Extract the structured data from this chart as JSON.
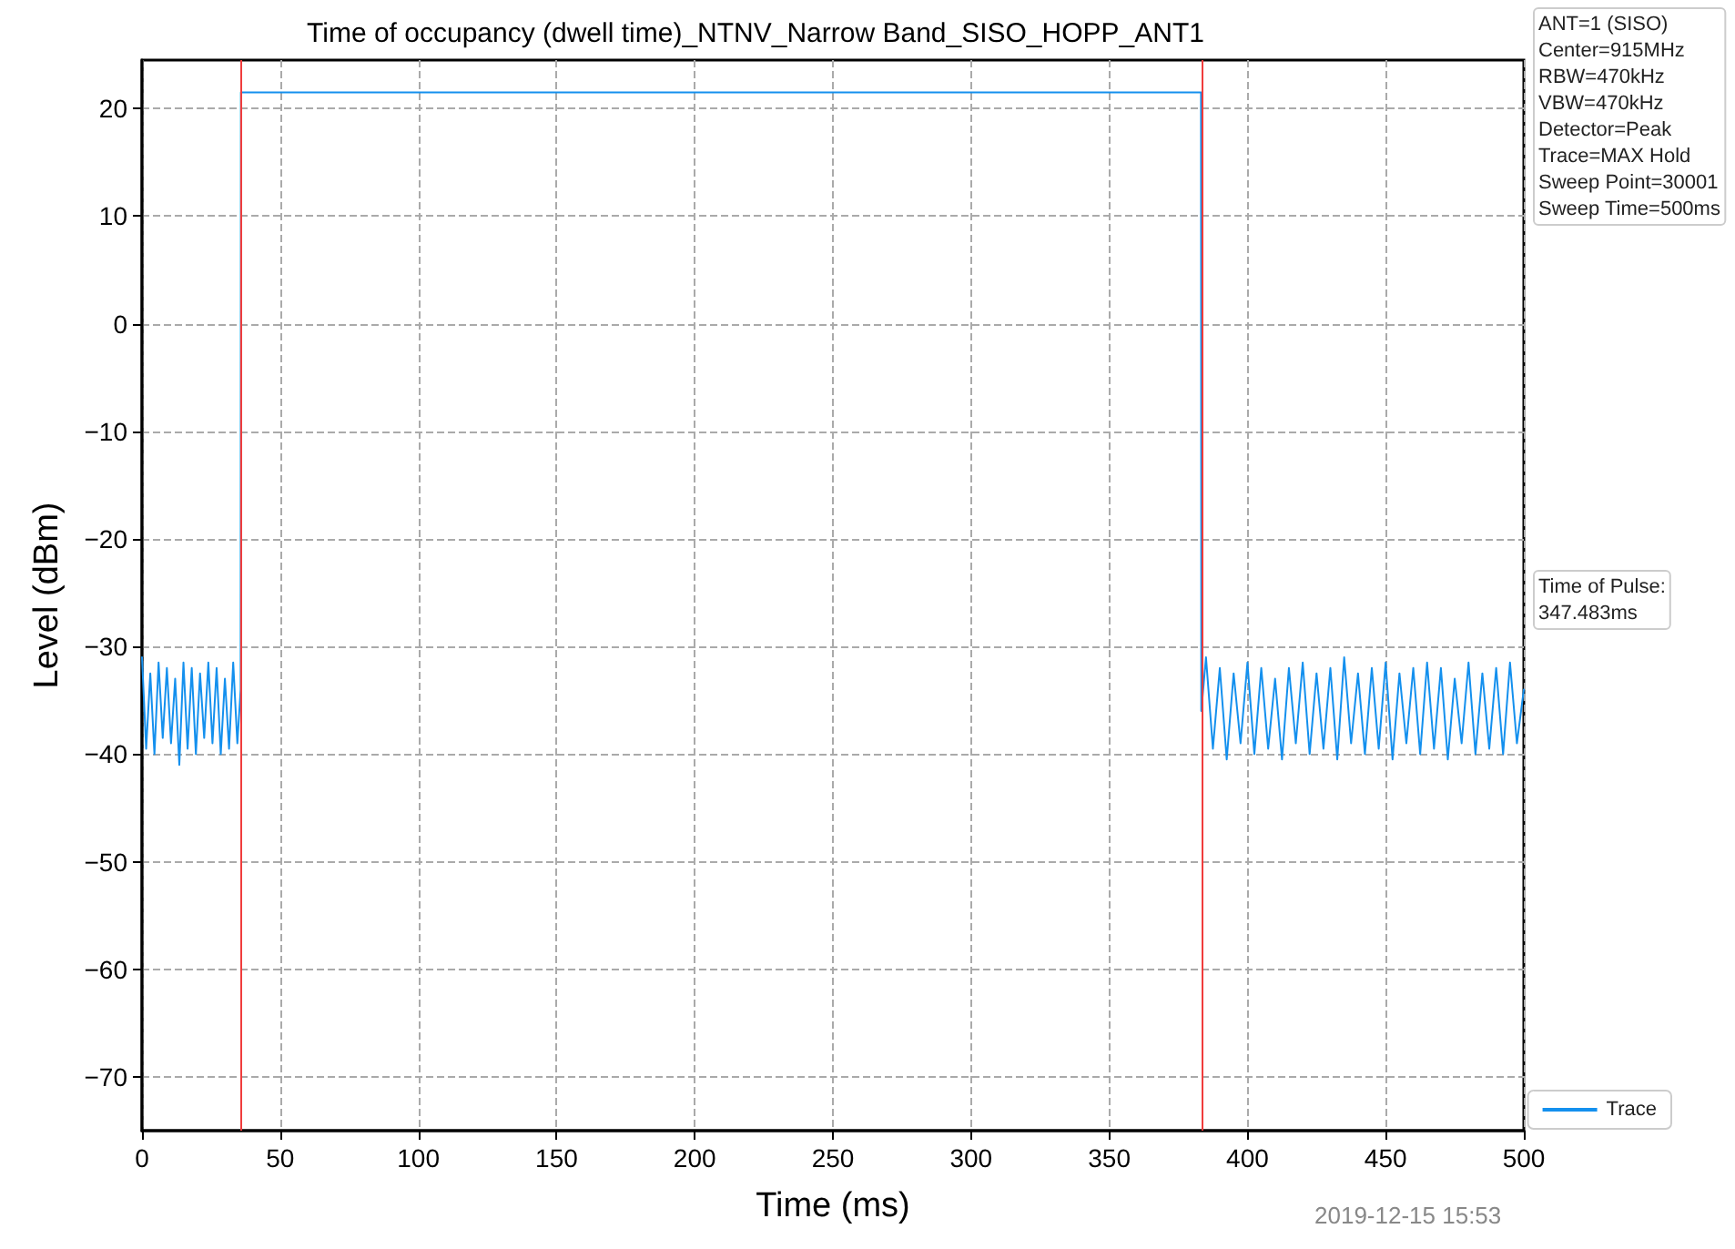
{
  "chart_data": {
    "type": "line",
    "title": "Time of occupancy (dwell time)_NTNV_Narrow Band_SISO_HOPP_ANT1",
    "xlabel": "Time (ms)",
    "ylabel": "Level (dBm)",
    "annotations": [
      "ANT=1 (SISO)\nCenter=915MHz\nRBW=470kHz\nVBW=470kHz\nDetector=Peak\nTrace=MAX Hold\nSweep Point=30001\nSweep Time=500ms",
      "Time of Pulse:\n347.483ms",
      "2019-12-15 15:53"
    ],
    "series": [
      {
        "name": "Trace",
        "color": "#1490ee",
        "x": [
          0,
          1.5,
          3,
          4.5,
          6,
          7.5,
          9,
          10.5,
          12,
          13.5,
          15,
          16.5,
          18,
          19.5,
          21,
          22.5,
          24,
          25.5,
          27,
          28.5,
          30,
          31.5,
          33,
          34.5,
          35.7,
          35.8,
          383.2,
          383.3,
          385,
          387.5,
          390,
          392.5,
          395,
          397.5,
          400,
          402.5,
          405,
          407.5,
          410,
          412.5,
          415,
          417.5,
          420,
          422.5,
          425,
          427.5,
          430,
          432.5,
          435,
          437.5,
          440,
          442.5,
          445,
          447.5,
          450,
          452.5,
          455,
          457.5,
          460,
          462.5,
          465,
          467.5,
          470,
          472.5,
          475,
          477.5,
          480,
          482.5,
          485,
          487.5,
          490,
          492.5,
          495,
          497.5,
          500
        ],
        "values": [
          -31,
          -39.5,
          -32.5,
          -40,
          -31.5,
          -38.5,
          -32,
          -39,
          -33,
          -41,
          -31.5,
          -39.5,
          -32,
          -40,
          -32.5,
          -38.5,
          -31.5,
          -39,
          -32,
          -40,
          -33,
          -39.5,
          -31.5,
          -39,
          -34,
          21.5,
          21.5,
          -36,
          -31,
          -39.5,
          -32,
          -40.5,
          -32.5,
          -39,
          -31.5,
          -40,
          -32,
          -39.5,
          -33,
          -40.5,
          -32,
          -39,
          -31.5,
          -40,
          -32.5,
          -39.5,
          -32,
          -40.5,
          -31,
          -39,
          -32.5,
          -40,
          -32,
          -39.5,
          -31.5,
          -40.5,
          -32.5,
          -39,
          -32,
          -40,
          -31.5,
          -39.5,
          -32,
          -40.5,
          -33,
          -39,
          -31.5,
          -40,
          -32.5,
          -39.5,
          -32,
          -40,
          -31.5,
          -39,
          -34
        ]
      }
    ],
    "ref_lines": [
      {
        "axis": "x",
        "value": 35.8,
        "color": "#f03c3c"
      },
      {
        "axis": "x",
        "value": 383.3,
        "color": "#f03c3c"
      }
    ],
    "xlim": [
      0,
      500
    ],
    "xticks": [
      0,
      50,
      100,
      150,
      200,
      250,
      300,
      350,
      400,
      450,
      500
    ],
    "ylim": [
      -75,
      24.5
    ],
    "yticks": [
      -70,
      -60,
      -50,
      -40,
      -30,
      -20,
      -10,
      0,
      10,
      20
    ],
    "grid": true,
    "legend": "bottom right",
    "line_style": "solid",
    "marker": "none"
  }
}
